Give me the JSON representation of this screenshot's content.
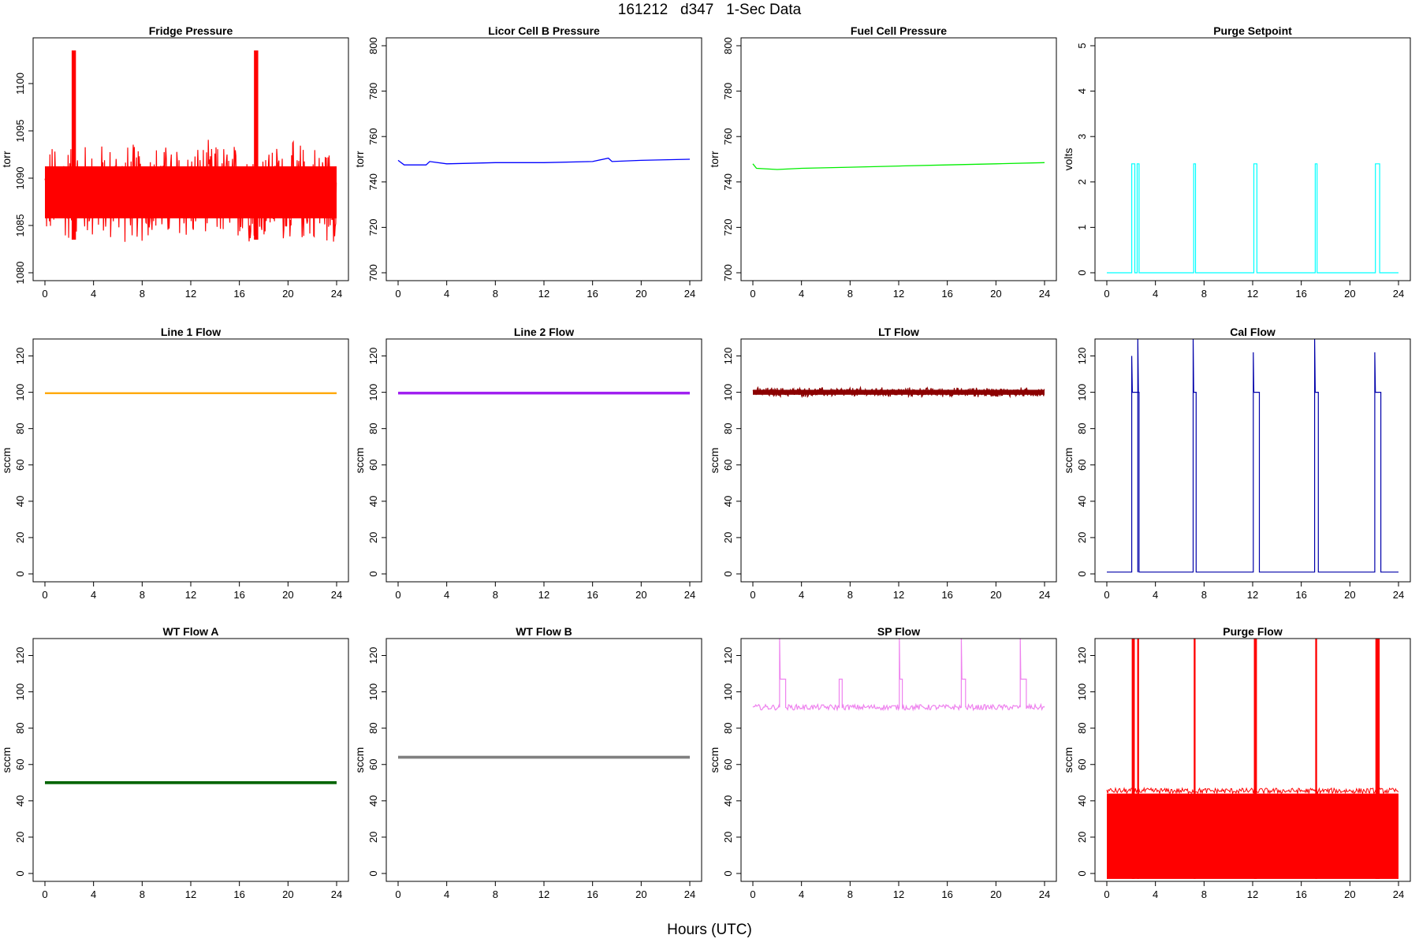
{
  "figure": {
    "title": "161212   d347   1-Sec Data",
    "xlabel": "Hours (UTC)"
  },
  "chart_data": [
    {
      "type": "line",
      "title": "Fridge Pressure",
      "ylabel": "torr",
      "color": "#ff0000",
      "xlim": [
        0,
        24
      ],
      "ylim": [
        1080,
        1104
      ],
      "xticks": [
        0,
        4,
        8,
        12,
        16,
        20,
        24
      ],
      "yticks": [
        1080,
        1085,
        1090,
        1095,
        1100
      ],
      "series": [
        {
          "style": "noise",
          "x": [
            0,
            24
          ],
          "y": [
            1088,
            1088
          ],
          "band": [
            1083.5,
            1093.5
          ],
          "events": [
            {
              "start": 2.2,
              "end": 2.55,
              "peak": 1103.5
            },
            {
              "start": 17.2,
              "end": 17.55,
              "peak": 1103.5
            }
          ]
        }
      ]
    },
    {
      "type": "line",
      "title": "Licor Cell B Pressure",
      "ylabel": "torr",
      "color": "#0000ff",
      "xlim": [
        0,
        24
      ],
      "ylim": [
        700,
        800
      ],
      "xticks": [
        0,
        4,
        8,
        12,
        16,
        20,
        24
      ],
      "yticks": [
        700,
        720,
        740,
        760,
        780,
        800
      ],
      "series": [
        {
          "style": "line",
          "x": [
            0,
            0.5,
            2.3,
            2.6,
            4,
            8,
            12,
            16,
            17.3,
            17.6,
            20,
            24
          ],
          "y": [
            749.5,
            747.5,
            747.5,
            749,
            748,
            748.5,
            748.5,
            749,
            750.5,
            749,
            749.5,
            750
          ]
        }
      ]
    },
    {
      "type": "line",
      "title": "Fuel Cell Pressure",
      "ylabel": "torr",
      "color": "#00ee00",
      "xlim": [
        0,
        24
      ],
      "ylim": [
        700,
        800
      ],
      "xticks": [
        0,
        4,
        8,
        12,
        16,
        20,
        24
      ],
      "yticks": [
        700,
        720,
        740,
        760,
        780,
        800
      ],
      "series": [
        {
          "style": "line",
          "x": [
            0,
            0.3,
            2,
            4,
            8,
            12,
            16,
            20,
            24
          ],
          "y": [
            748,
            746,
            745.5,
            746,
            746.5,
            747,
            747.5,
            748,
            748.5
          ]
        }
      ]
    },
    {
      "type": "line",
      "title": "Purge Setpoint",
      "ylabel": "volts",
      "color": "#00ffff",
      "xlim": [
        0,
        24
      ],
      "ylim": [
        0,
        5
      ],
      "xticks": [
        0,
        4,
        8,
        12,
        16,
        20,
        24
      ],
      "yticks": [
        0,
        1,
        2,
        3,
        4,
        5
      ],
      "series": [
        {
          "style": "pulses",
          "base": 0,
          "level": 2.4,
          "pulses": [
            [
              2.05,
              2.3
            ],
            [
              2.5,
              2.65
            ],
            [
              7.15,
              7.3
            ],
            [
              12.1,
              12.35
            ],
            [
              17.15,
              17.3
            ],
            [
              22.1,
              22.45
            ]
          ]
        }
      ]
    },
    {
      "type": "line",
      "title": "Line 1 Flow",
      "ylabel": "sccm",
      "color": "#ffa500",
      "xlim": [
        0,
        24
      ],
      "ylim": [
        0,
        125
      ],
      "xticks": [
        0,
        4,
        8,
        12,
        16,
        20,
        24
      ],
      "yticks": [
        0,
        20,
        40,
        60,
        80,
        100,
        120
      ],
      "series": [
        {
          "style": "noise",
          "x": [
            0,
            24
          ],
          "y": [
            99.5,
            99.5
          ],
          "band": [
            99,
            100
          ]
        }
      ]
    },
    {
      "type": "line",
      "title": "Line 2 Flow",
      "ylabel": "sccm",
      "color": "#a020f0",
      "xlim": [
        0,
        24
      ],
      "ylim": [
        0,
        125
      ],
      "xticks": [
        0,
        4,
        8,
        12,
        16,
        20,
        24
      ],
      "yticks": [
        0,
        20,
        40,
        60,
        80,
        100,
        120
      ],
      "series": [
        {
          "style": "noise",
          "x": [
            0,
            24
          ],
          "y": [
            99.5,
            99.5
          ],
          "band": [
            98.8,
            100.3
          ]
        }
      ]
    },
    {
      "type": "line",
      "title": "LT Flow",
      "ylabel": "sccm",
      "color": "#8b0000",
      "xlim": [
        0,
        24
      ],
      "ylim": [
        0,
        125
      ],
      "xticks": [
        0,
        4,
        8,
        12,
        16,
        20,
        24
      ],
      "yticks": [
        0,
        20,
        40,
        60,
        80,
        100,
        120
      ],
      "series": [
        {
          "style": "noise",
          "x": [
            0,
            24
          ],
          "y": [
            100,
            100
          ],
          "band": [
            97.5,
            102.5
          ]
        }
      ]
    },
    {
      "type": "line",
      "title": "Cal Flow",
      "ylabel": "sccm",
      "color": "#0000aa",
      "xlim": [
        0,
        24
      ],
      "ylim": [
        0,
        125
      ],
      "xticks": [
        0,
        4,
        8,
        12,
        16,
        20,
        24
      ],
      "yticks": [
        0,
        20,
        40,
        60,
        80,
        100,
        120
      ],
      "series": [
        {
          "style": "pulses",
          "base": 1,
          "level": 100,
          "pulses": [
            [
              2.05,
              2.55,
              120
            ],
            [
              2.55,
              2.65,
              130
            ],
            [
              7.1,
              7.35,
              130
            ],
            [
              12.05,
              12.55,
              122
            ],
            [
              17.1,
              17.4,
              130
            ],
            [
              22.05,
              22.55,
              122
            ]
          ]
        }
      ]
    },
    {
      "type": "line",
      "title": "WT Flow A",
      "ylabel": "sccm",
      "color": "#006400",
      "xlim": [
        0,
        24
      ],
      "ylim": [
        0,
        125
      ],
      "xticks": [
        0,
        4,
        8,
        12,
        16,
        20,
        24
      ],
      "yticks": [
        0,
        20,
        40,
        60,
        80,
        100,
        120
      ],
      "series": [
        {
          "style": "noise",
          "x": [
            0,
            24
          ],
          "y": [
            50,
            50
          ],
          "band": [
            49.2,
            50.8
          ]
        }
      ]
    },
    {
      "type": "line",
      "title": "WT Flow B",
      "ylabel": "sccm",
      "color": "#808080",
      "xlim": [
        0,
        24
      ],
      "ylim": [
        0,
        125
      ],
      "xticks": [
        0,
        4,
        8,
        12,
        16,
        20,
        24
      ],
      "yticks": [
        0,
        20,
        40,
        60,
        80,
        100,
        120
      ],
      "series": [
        {
          "style": "noise",
          "x": [
            0,
            24
          ],
          "y": [
            64,
            64
          ],
          "band": [
            63.2,
            64.8
          ]
        }
      ]
    },
    {
      "type": "line",
      "title": "SP Flow",
      "ylabel": "sccm",
      "color": "#ee82ee",
      "xlim": [
        0,
        24
      ],
      "ylim": [
        0,
        125
      ],
      "xticks": [
        0,
        4,
        8,
        12,
        16,
        20,
        24
      ],
      "yticks": [
        0,
        20,
        40,
        60,
        80,
        100,
        120
      ],
      "series": [
        {
          "style": "pulses",
          "base": 91.5,
          "level": 107,
          "noise": 1.5,
          "pulses": [
            [
              2.2,
              2.7,
              130
            ],
            [
              7.1,
              7.35,
              107
            ],
            [
              12.05,
              12.3,
              130
            ],
            [
              17.15,
              17.5,
              130
            ],
            [
              22.0,
              22.5,
              130
            ]
          ]
        }
      ]
    },
    {
      "type": "line",
      "title": "Purge Flow",
      "ylabel": "sccm",
      "color": "#ff0000",
      "xlim": [
        0,
        24
      ],
      "ylim": [
        0,
        125
      ],
      "xticks": [
        0,
        4,
        8,
        12,
        16,
        20,
        24
      ],
      "yticks": [
        0,
        20,
        40,
        60,
        80,
        100,
        120
      ],
      "series": [
        {
          "style": "spikes",
          "base": -3,
          "level": 44,
          "pulses": [
            [
              2.05,
              2.3,
              130
            ],
            [
              2.5,
              2.65,
              130
            ],
            [
              7.15,
              7.3,
              130
            ],
            [
              12.1,
              12.35,
              130
            ],
            [
              17.15,
              17.3,
              130
            ],
            [
              22.1,
              22.45,
              130
            ]
          ]
        }
      ]
    }
  ]
}
